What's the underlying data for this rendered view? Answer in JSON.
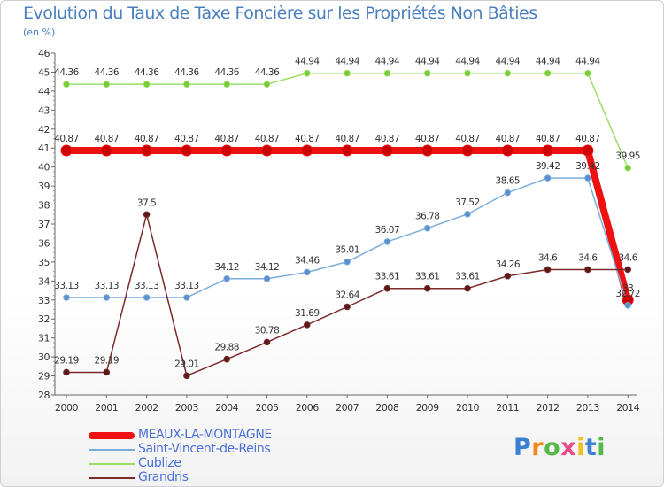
{
  "header": {
    "title": "Evolution du Taux de Taxe Foncière sur les Propriétés Non Bâties",
    "subtitle": "(en %)"
  },
  "chart_data": {
    "type": "line",
    "title": "Evolution du Taux de Taxe Foncière sur les Propriétés Non Bâties",
    "ylabel": "(en %)",
    "xlabel": "",
    "ylim": [
      28,
      46
    ],
    "yticks": [
      28,
      29,
      30,
      31,
      32,
      33,
      34,
      35,
      36,
      37,
      38,
      39,
      40,
      41,
      42,
      43,
      44,
      45,
      46
    ],
    "grid": false,
    "x": [
      "2000",
      "2001",
      "2002",
      "2003",
      "2004",
      "2005",
      "2006",
      "2007",
      "2008",
      "2009",
      "2010",
      "2011",
      "2012",
      "2013",
      "2014"
    ],
    "series": [
      {
        "name": "MEAUX-LA-MONTAGNE",
        "color": "#ee1111",
        "marker_color": "#cc0000",
        "values": [
          40.87,
          40.87,
          40.87,
          40.87,
          40.87,
          40.87,
          40.87,
          40.87,
          40.87,
          40.87,
          40.87,
          40.87,
          40.87,
          40.87,
          33
        ],
        "labels": [
          "40.87",
          "40.87",
          "40.87",
          "40.87",
          "40.87",
          "40.87",
          "40.87",
          "40.87",
          "40.87",
          "40.87",
          "40.87",
          "40.87",
          "40.87",
          "40.87",
          "33"
        ]
      },
      {
        "name": "Saint-Vincent-de-Reins",
        "color": "#7aaddb",
        "marker_color": "#5b8fd0",
        "values": [
          33.13,
          33.13,
          33.13,
          33.13,
          34.12,
          34.12,
          34.46,
          35.01,
          36.07,
          36.78,
          37.52,
          38.65,
          39.42,
          39.42,
          32.72
        ],
        "labels": [
          "33.13",
          "33.13",
          "33.13",
          "33.13",
          "34.12",
          "34.12",
          "34.46",
          "35.01",
          "36.07",
          "36.78",
          "37.52",
          "38.65",
          "39.42",
          "39.42",
          "32.72"
        ]
      },
      {
        "name": "Cublize",
        "color": "#99dd66",
        "marker_color": "#77cc33",
        "values": [
          44.36,
          44.36,
          44.36,
          44.36,
          44.36,
          44.36,
          44.94,
          44.94,
          44.94,
          44.94,
          44.94,
          44.94,
          44.94,
          44.94,
          39.95
        ],
        "labels": [
          "44.36",
          "44.36",
          "44.36",
          "44.36",
          "44.36",
          "44.36",
          "44.94",
          "44.94",
          "44.94",
          "44.94",
          "44.94",
          "44.94",
          "44.94",
          "44.94",
          "39.95"
        ]
      },
      {
        "name": "Grandris",
        "color": "#7a2a2a",
        "marker_color": "#5a1a1a",
        "values": [
          29.19,
          29.19,
          37.5,
          29.01,
          29.88,
          30.78,
          31.69,
          32.64,
          33.61,
          33.61,
          33.61,
          34.26,
          34.6,
          34.6,
          34.6
        ],
        "labels": [
          "29.19",
          "29.19",
          "37.5",
          "29.01",
          "29.88",
          "30.78",
          "31.69",
          "32.64",
          "33.61",
          "33.61",
          "33.61",
          "34.26",
          "34.6",
          "34.6",
          "34.6"
        ]
      }
    ],
    "legend": {
      "position": "bottom-left"
    }
  },
  "logo": {
    "letters": [
      "P",
      "r",
      "o",
      "x",
      "i",
      "t",
      "i"
    ],
    "colors": [
      "#3a7fd0",
      "#f08a1c",
      "#56b848",
      "#e84c8a",
      "#f0c020",
      "#3a7fd0",
      "#56b848"
    ]
  }
}
